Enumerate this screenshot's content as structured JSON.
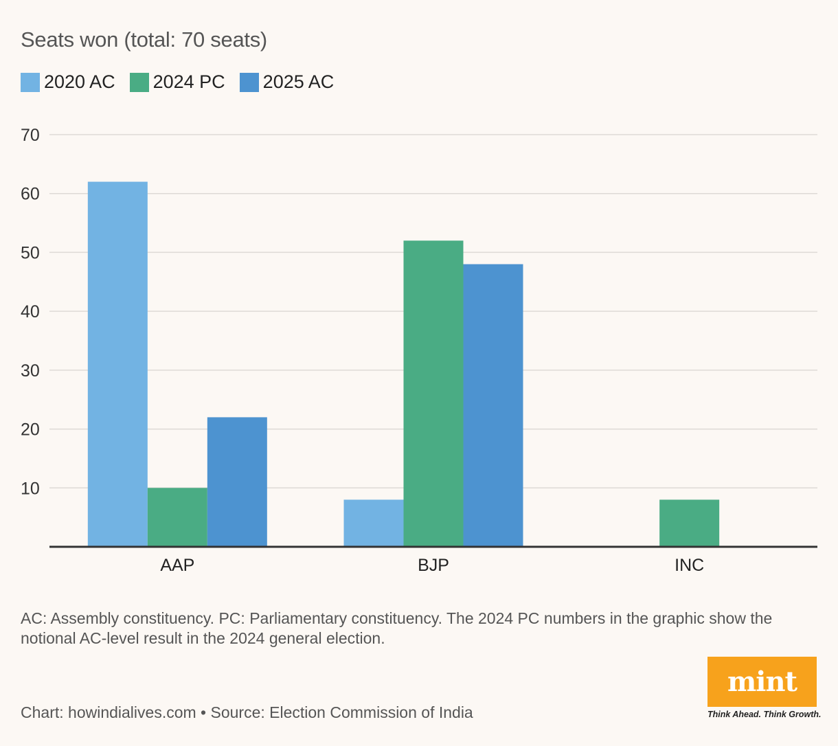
{
  "chart_data": {
    "type": "bar",
    "title": "Seats won (total: 70 seats)",
    "categories": [
      "AAP",
      "BJP",
      "INC"
    ],
    "series": [
      {
        "name": "2020 AC",
        "color": "#72b3e3",
        "values": [
          62,
          8,
          0
        ]
      },
      {
        "name": "2024 PC",
        "color": "#4aac84",
        "values": [
          10,
          52,
          8
        ]
      },
      {
        "name": "2025 AC",
        "color": "#4d93d0",
        "values": [
          22,
          48,
          0
        ]
      }
    ],
    "ylim": [
      0,
      70
    ],
    "yticks": [
      10,
      20,
      30,
      40,
      50,
      60,
      70
    ],
    "xlabel": "",
    "ylabel": "",
    "grid": true,
    "legend": "top-left"
  },
  "note": "AC: Assembly constituency. PC: Parliamentary constituency. The 2024 PC numbers in the graphic show the notional AC-level result in the 2024 general election.",
  "credit": "Chart: howindialives.com • Source: Election Commission of India",
  "logo": {
    "name": "mint",
    "tagline": "Think Ahead. Think Growth.",
    "color": "#f7a21c"
  }
}
